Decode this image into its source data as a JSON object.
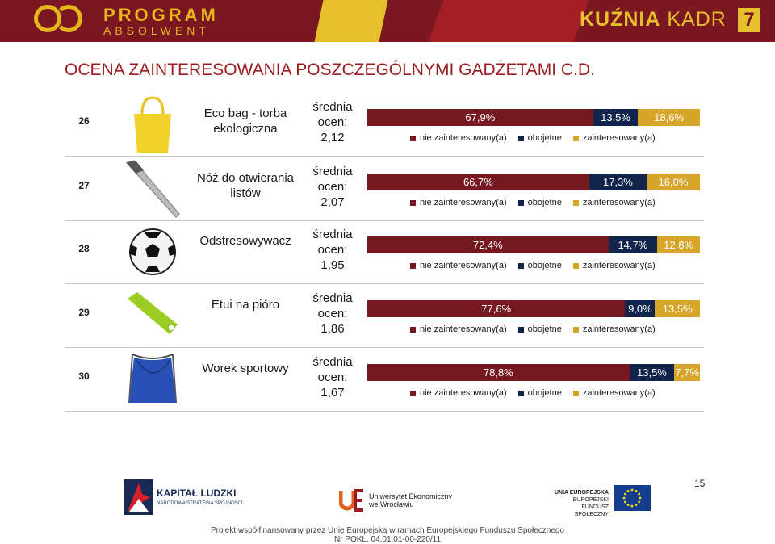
{
  "header": {
    "left_logo_line1": "PROGRAM",
    "left_logo_line2": "ABSOLWENT",
    "right_logo_bold": "KUŹNIA",
    "right_logo_light": " KADR",
    "right_logo_number": "7"
  },
  "page_title": "OCENA ZAINTERESOWANIA POSZCZEGÓLNYMI GADŻETAMI C.D.",
  "legend": {
    "nie": "nie zainteresowany(a)",
    "obo": "obojętne",
    "zai": "zainteresowany(a)"
  },
  "colors": {
    "nie": "#761820",
    "obo": "#10244c",
    "zai": "#d6a52a",
    "title": "#9b1b1f",
    "header": "#7a1720"
  },
  "avg_label_line1": "średnia",
  "avg_label_line2": "ocen:",
  "items": [
    {
      "num": "26",
      "name": "Eco bag - torba ekologiczna",
      "avg": "2,12",
      "icon": "tote-bag-icon",
      "nie": 67.9,
      "obo": 13.5,
      "zai": 18.6,
      "nie_label": "67,9%",
      "obo_label": "13,5%",
      "zai_label": "18,6%"
    },
    {
      "num": "27",
      "name": "Nóż do otwierania listów",
      "avg": "2,07",
      "icon": "letter-opener-icon",
      "nie": 66.7,
      "obo": 17.3,
      "zai": 16.0,
      "nie_label": "66,7%",
      "obo_label": "17,3%",
      "zai_label": "16,0%"
    },
    {
      "num": "28",
      "name": "Odstresowywacz",
      "avg": "1,95",
      "icon": "stress-ball-icon",
      "nie": 72.4,
      "obo": 14.7,
      "zai": 12.8,
      "nie_label": "72,4%",
      "obo_label": "14,7%",
      "zai_label": "12,8%"
    },
    {
      "num": "29",
      "name": "Etui na pióro",
      "avg": "1,86",
      "icon": "pen-case-icon",
      "nie": 77.6,
      "obo": 9.0,
      "zai": 13.5,
      "nie_label": "77,6%",
      "obo_label": "9,0%",
      "zai_label": "13,5%"
    },
    {
      "num": "30",
      "name": "Worek sportowy",
      "avg": "1,67",
      "icon": "drawstring-bag-icon",
      "nie": 78.8,
      "obo": 13.5,
      "zai": 7.7,
      "nie_label": "78,8%",
      "obo_label": "13,5%",
      "zai_label": "7,7%"
    }
  ],
  "footer": {
    "kl_title": "KAPITAŁ LUDZKI",
    "kl_sub": "NARODOWA STRATEGIA SPÓJNOŚCI",
    "ue_line1": "Uniwersytet Ekonomiczny",
    "ue_line2": "we Wrocławiu",
    "eu_line1": "UNIA EUROPEJSKA",
    "eu_line2": "EUROPEJSKI",
    "eu_line3": "FUNDUSZ SPOŁECZNY",
    "page_number": "15",
    "funding_line1": "Projekt współfinansowany przez Unię Europejską w ramach Europejskiego Funduszu Społecznego",
    "funding_line2": "Nr POKL. 04.01.01-00-220/11"
  },
  "chart_data": {
    "type": "bar",
    "categories": [
      "Eco bag - torba ekologiczna",
      "Nóż do otwierania listów",
      "Odstresowywacz",
      "Etui na pióro",
      "Worek sportowy"
    ],
    "series": [
      {
        "name": "nie zainteresowany(a)",
        "values": [
          67.9,
          66.7,
          72.4,
          77.6,
          78.8
        ]
      },
      {
        "name": "obojętne",
        "values": [
          13.5,
          17.3,
          14.7,
          9.0,
          13.5
        ]
      },
      {
        "name": "zainteresowany(a)",
        "values": [
          18.6,
          16.0,
          12.8,
          13.5,
          7.7
        ]
      }
    ],
    "stacked": true,
    "orientation": "horizontal",
    "legend_position": "below"
  }
}
